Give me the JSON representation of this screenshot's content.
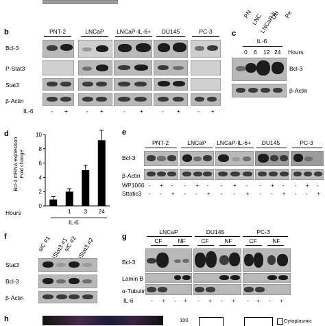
{
  "top": {
    "rot_labels": [
      "PN",
      "LNC",
      "LNCaP-IL",
      "DU",
      "Pe"
    ]
  },
  "b": {
    "label": "b",
    "groups": [
      "PNT-2",
      "LNCaP",
      "LNCaP-IL-6+",
      "DU145",
      "PC-3"
    ],
    "rows": [
      "Bcl-3",
      "P-Stat3",
      "Stat3",
      "β-Actin"
    ],
    "treat": "IL-6",
    "signs": [
      "-",
      "+"
    ]
  },
  "c": {
    "label": "c",
    "header": "IL-6",
    "hours": [
      "0",
      "6",
      "12",
      "24"
    ],
    "hours_label": "Hours",
    "rows": [
      "Bcl-3",
      "β-Actin"
    ]
  },
  "d": {
    "label": "d",
    "ylabel_line1": "Bcl-3 mRNA expression",
    "ylabel_line2": "Fold change",
    "yticks": [
      "0",
      "2",
      "4",
      "6",
      "8",
      "10"
    ],
    "xticks": [
      "",
      "1",
      "3",
      "24"
    ],
    "hours_label": "Hours",
    "il6_label": "IL-6"
  },
  "chart_data": {
    "type": "bar",
    "categories": [
      "",
      "1",
      "3",
      "24"
    ],
    "values": [
      0.9,
      2.0,
      5.0,
      9.2
    ],
    "errors": [
      0.4,
      0.4,
      0.7,
      1.4
    ],
    "xlabel": "Hours",
    "ylabel": "Bcl-3 mRNA expression Fold change",
    "ylim": [
      0,
      10
    ]
  },
  "e": {
    "label": "e",
    "groups": [
      "PNT-2",
      "LNCaP",
      "LNCaP-IL-6+",
      "DU145",
      "PC-3"
    ],
    "rows": [
      "Bcl-3",
      "β-Actin"
    ],
    "treat1": "WP1066",
    "treat2": "Sttatic3",
    "signs": [
      "-",
      "+",
      "-"
    ]
  },
  "f": {
    "label": "f",
    "lanes": [
      "siC #1",
      "siStat3 #1",
      "siC #2",
      "siStat3 #2"
    ],
    "rows": [
      "Stat3",
      "Bcl-3",
      "β-Actin"
    ]
  },
  "g": {
    "label": "g",
    "groups": [
      "LNCaP",
      "DU145",
      "PC-3"
    ],
    "fractions": [
      "CF",
      "NF"
    ],
    "rows": [
      "Bcl-3",
      "Lamin B",
      "α-Tubulin"
    ],
    "treat": "IL-6",
    "signs": [
      "-",
      "+"
    ]
  },
  "h": {
    "label": "h",
    "ytick": "100",
    "legend": "Cytoplasmic"
  }
}
